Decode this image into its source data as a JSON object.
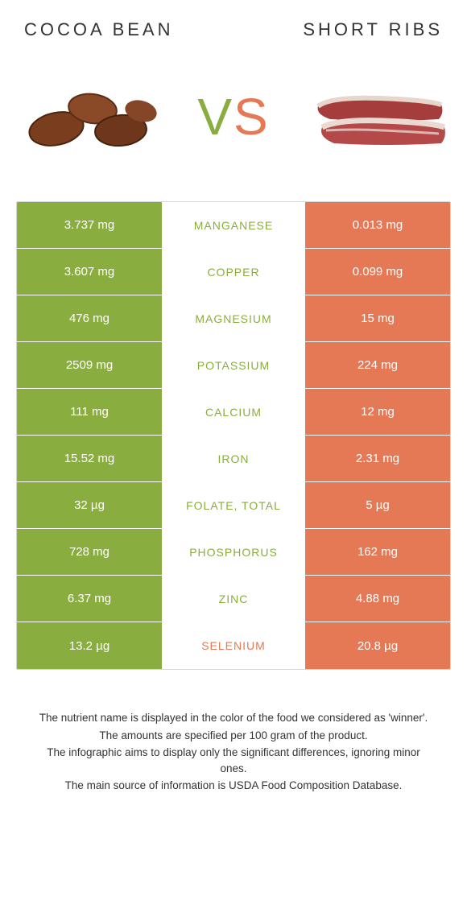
{
  "colors": {
    "green": "#8aad3f",
    "orange": "#e57855",
    "text": "#333333"
  },
  "header": {
    "left_title": "COCOA BEAN",
    "right_title": "SHORT RIBS"
  },
  "vs": {
    "v": "V",
    "s": "S"
  },
  "rows": [
    {
      "left": "3.737 mg",
      "label": "MANGANESE",
      "right": "0.013 mg",
      "winner": "left"
    },
    {
      "left": "3.607 mg",
      "label": "COPPER",
      "right": "0.099 mg",
      "winner": "left"
    },
    {
      "left": "476 mg",
      "label": "MAGNESIUM",
      "right": "15 mg",
      "winner": "left"
    },
    {
      "left": "2509 mg",
      "label": "POTASSIUM",
      "right": "224 mg",
      "winner": "left"
    },
    {
      "left": "111 mg",
      "label": "CALCIUM",
      "right": "12 mg",
      "winner": "left"
    },
    {
      "left": "15.52 mg",
      "label": "IRON",
      "right": "2.31 mg",
      "winner": "left"
    },
    {
      "left": "32 µg",
      "label": "FOLATE, TOTAL",
      "right": "5 µg",
      "winner": "left"
    },
    {
      "left": "728 mg",
      "label": "PHOSPHORUS",
      "right": "162 mg",
      "winner": "left"
    },
    {
      "left": "6.37 mg",
      "label": "ZINC",
      "right": "4.88 mg",
      "winner": "left"
    },
    {
      "left": "13.2 µg",
      "label": "SELENIUM",
      "right": "20.8 µg",
      "winner": "right"
    }
  ],
  "footer": {
    "line1": "The nutrient name is displayed in the color of the food we considered as 'winner'.",
    "line2": "The amounts are specified per 100 gram of the product.",
    "line3": "The infographic aims to display only the significant differences, ignoring minor ones.",
    "line4": "The main source of information is USDA Food Composition Database."
  }
}
